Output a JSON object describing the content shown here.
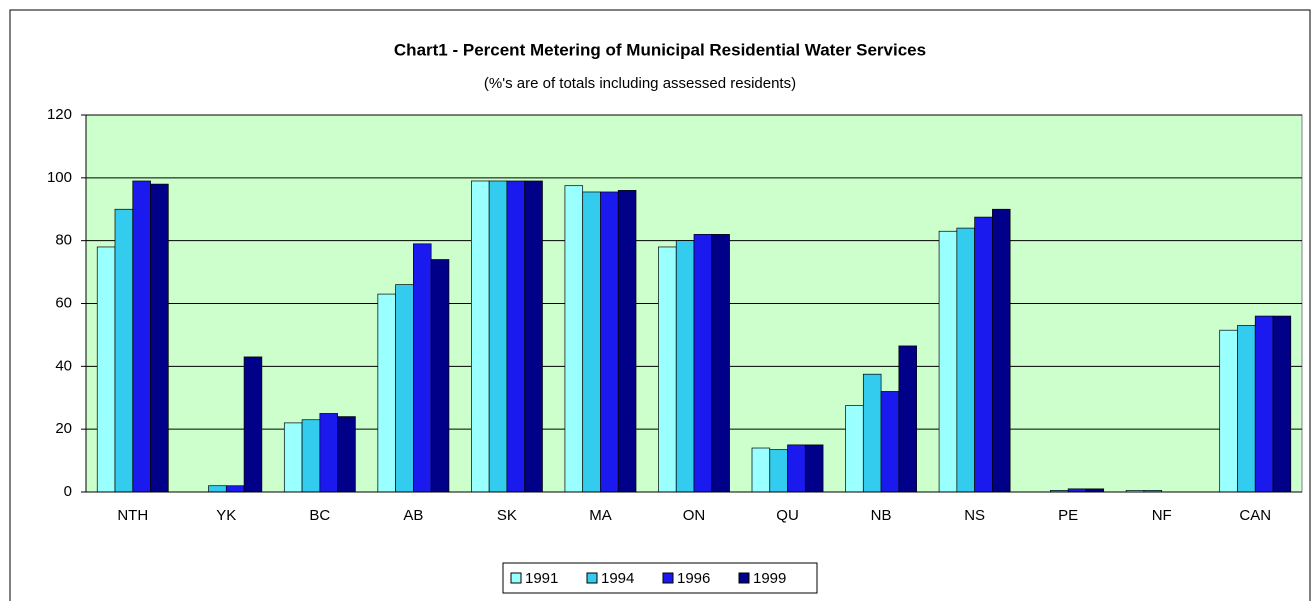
{
  "chart_data": {
    "type": "bar",
    "title": "Chart1 - Percent Metering of Municipal Residential Water Services",
    "subtitle": "(%'s are of totals including assessed residents)",
    "categories": [
      "NTH",
      "YK",
      "BC",
      "AB",
      "SK",
      "MA",
      "ON",
      "QU",
      "NB",
      "NS",
      "PE",
      "NF",
      "CAN"
    ],
    "series": [
      {
        "name": "1991",
        "color": "#99ffff",
        "values": [
          78,
          0,
          22,
          63,
          99,
          97.5,
          78,
          14,
          27.5,
          83,
          0,
          0.5,
          51.5
        ]
      },
      {
        "name": "1994",
        "color": "#33ccee",
        "values": [
          90,
          2,
          23,
          66,
          99,
          95.5,
          80,
          13.5,
          37.5,
          84,
          0.5,
          0.5,
          53
        ]
      },
      {
        "name": "1996",
        "color": "#1a1aee",
        "values": [
          99,
          2,
          25,
          79,
          99,
          95.5,
          82,
          15,
          32,
          87.5,
          1,
          0,
          56
        ]
      },
      {
        "name": "1999",
        "color": "#000088",
        "values": [
          98,
          43,
          24,
          74,
          99,
          96,
          82,
          15,
          46.5,
          90,
          1,
          0,
          56
        ]
      }
    ],
    "ylim": [
      0,
      120
    ],
    "yticks": [
      0,
      20,
      40,
      60,
      80,
      100,
      120
    ],
    "grid": true,
    "legend": "bottom"
  }
}
